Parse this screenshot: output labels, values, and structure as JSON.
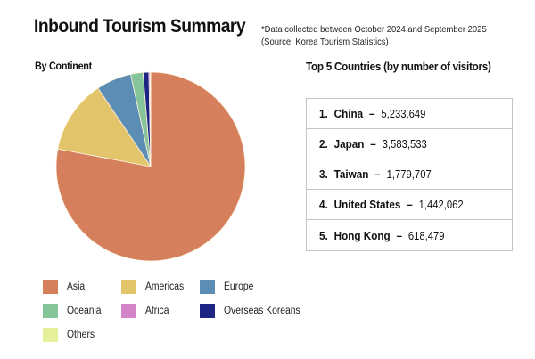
{
  "header": {
    "title": "Inbound Tourism Summary",
    "note_line1": "*Data collected between October 2024 and September 2025",
    "note_line2": "(Source: Korea Tourism Statistics)"
  },
  "left": {
    "subtitle": "By Continent"
  },
  "right": {
    "subtitle": "Top 5 Countries (by number of visitors)",
    "rows": [
      {
        "rank": "1.",
        "country": "China",
        "dash": "–",
        "visitors": "5,233,649"
      },
      {
        "rank": "2.",
        "country": "Japan",
        "dash": "–",
        "visitors": "3,583,533"
      },
      {
        "rank": "3.",
        "country": "Taiwan",
        "dash": "–",
        "visitors": "1,779,707"
      },
      {
        "rank": "4.",
        "country": "United States",
        "dash": "–",
        "visitors": "1,442,062"
      },
      {
        "rank": "5.",
        "country": "Hong Kong",
        "dash": "–",
        "visitors": "618,479"
      }
    ]
  },
  "legend": [
    {
      "label": "Asia",
      "color": "#d67f5c"
    },
    {
      "label": "Americas",
      "color": "#e2c46a"
    },
    {
      "label": "Europe",
      "color": "#5b8db5"
    },
    {
      "label": "Oceania",
      "color": "#86c49a"
    },
    {
      "label": "Africa",
      "color": "#d384c7"
    },
    {
      "label": "Overseas Koreans",
      "color": "#1e2585"
    },
    {
      "label": "Others",
      "color": "#e6f09a"
    }
  ],
  "chart_data": [
    {
      "type": "pie",
      "title": "By Continent",
      "categories": [
        "Asia",
        "Americas",
        "Europe",
        "Oceania",
        "Africa",
        "Overseas Koreans",
        "Others"
      ],
      "values": [
        78.0,
        12.6,
        6.0,
        2.1,
        0.2,
        1.0,
        0.1
      ],
      "unit": "% of visitors (estimated from slice angles)",
      "colors": [
        "#d67f5c",
        "#e2c46a",
        "#5b8db5",
        "#86c49a",
        "#d384c7",
        "#1e2585",
        "#e6f09a"
      ],
      "start_angle": "12 o'clock, clockwise",
      "legend_position": "bottom"
    },
    {
      "type": "table",
      "title": "Top 5 Countries (by number of visitors)",
      "categories": [
        "China",
        "Japan",
        "Taiwan",
        "United States",
        "Hong Kong"
      ],
      "values": [
        5233649,
        3583533,
        1779707,
        1442062,
        618479
      ]
    }
  ]
}
